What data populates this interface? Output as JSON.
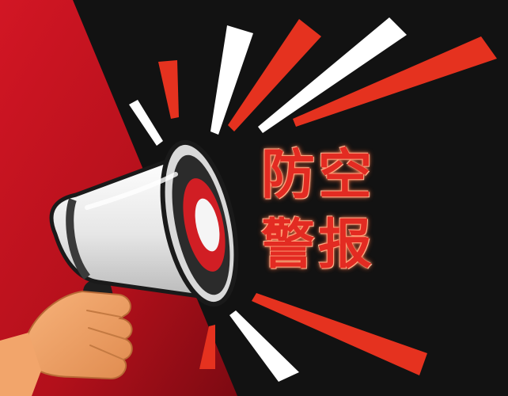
{
  "poster": {
    "title_line_1": "防空",
    "title_line_2": "警报",
    "colors": {
      "background_dark": "#111111",
      "background_red": "#c4121d",
      "accent_red": "#e32b22",
      "ray_white": "#ffffff",
      "skin": "#f2a56b"
    },
    "icons": {
      "megaphone": "megaphone-icon",
      "hand": "hand-icon"
    }
  }
}
